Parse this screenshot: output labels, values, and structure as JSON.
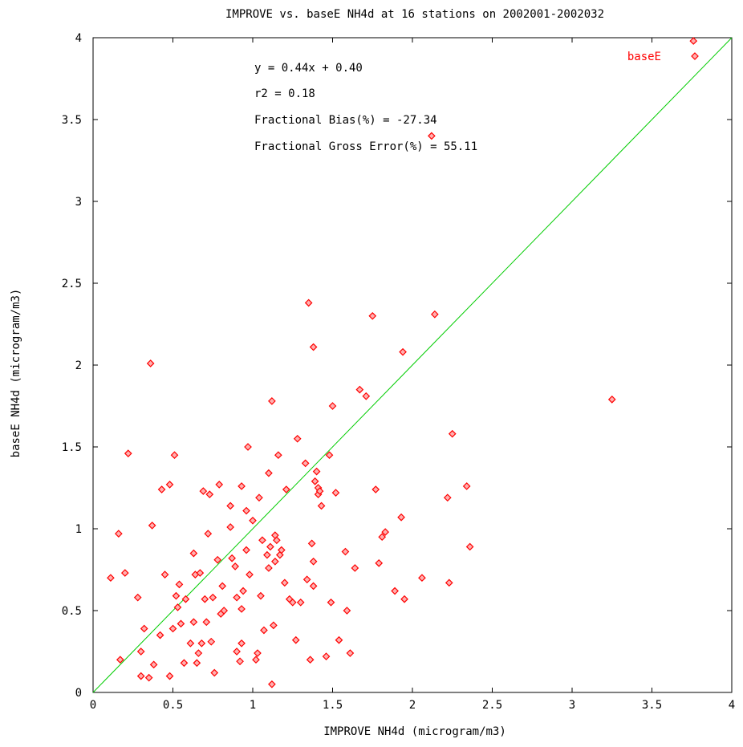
{
  "chart_data": {
    "type": "scatter",
    "title": "IMPROVE vs. baseE NH4d at 16 stations on 2002001-2002032",
    "xlabel": "IMPROVE NH4d  (microgram/m3)",
    "ylabel": "baseE NH4d  (microgram/m3)",
    "xlim": [
      0,
      4
    ],
    "ylim": [
      0,
      4
    ],
    "xticks": [
      "0",
      "0.5",
      "1",
      "1.5",
      "2",
      "2.5",
      "3",
      "3.5",
      "4"
    ],
    "yticks": [
      "0",
      "0.5",
      "1",
      "1.5",
      "2",
      "2.5",
      "3",
      "3.5",
      "4"
    ],
    "grid": false,
    "legend": {
      "label": "baseE",
      "placement": "top-right"
    },
    "stats": [
      "y = 0.44x + 0.40",
      "r2 = 0.18",
      "Fractional Bias(%) = -27.34",
      "Fractional Gross Error(%) = 55.11"
    ],
    "reference_line": {
      "type": "1:1",
      "color": "#00cc00"
    },
    "series": [
      {
        "name": "baseE",
        "color": "#ff0000",
        "points": [
          [
            0.11,
            0.7
          ],
          [
            0.16,
            0.97
          ],
          [
            0.17,
            0.2
          ],
          [
            0.2,
            0.73
          ],
          [
            0.22,
            1.46
          ],
          [
            0.28,
            0.58
          ],
          [
            0.3,
            0.25
          ],
          [
            0.3,
            0.1
          ],
          [
            0.32,
            0.39
          ],
          [
            0.35,
            0.09
          ],
          [
            0.36,
            2.01
          ],
          [
            0.37,
            1.02
          ],
          [
            0.38,
            0.17
          ],
          [
            0.42,
            0.35
          ],
          [
            0.43,
            1.24
          ],
          [
            0.45,
            0.72
          ],
          [
            0.48,
            1.27
          ],
          [
            0.48,
            0.1
          ],
          [
            0.5,
            0.39
          ],
          [
            0.51,
            1.45
          ],
          [
            0.52,
            0.59
          ],
          [
            0.53,
            0.52
          ],
          [
            0.54,
            0.66
          ],
          [
            0.55,
            0.42
          ],
          [
            0.57,
            0.18
          ],
          [
            0.58,
            0.57
          ],
          [
            0.61,
            0.3
          ],
          [
            0.63,
            0.85
          ],
          [
            0.63,
            0.43
          ],
          [
            0.64,
            0.72
          ],
          [
            0.65,
            0.18
          ],
          [
            0.66,
            0.24
          ],
          [
            0.67,
            0.73
          ],
          [
            0.68,
            0.3
          ],
          [
            0.69,
            1.23
          ],
          [
            0.7,
            0.57
          ],
          [
            0.71,
            0.43
          ],
          [
            0.72,
            0.97
          ],
          [
            0.73,
            1.21
          ],
          [
            0.74,
            0.31
          ],
          [
            0.75,
            0.58
          ],
          [
            0.76,
            0.12
          ],
          [
            0.78,
            0.81
          ],
          [
            0.79,
            1.27
          ],
          [
            0.8,
            0.48
          ],
          [
            0.81,
            0.65
          ],
          [
            0.82,
            0.5
          ],
          [
            0.86,
            1.14
          ],
          [
            0.86,
            1.01
          ],
          [
            0.87,
            0.82
          ],
          [
            0.89,
            0.77
          ],
          [
            0.9,
            0.58
          ],
          [
            0.9,
            0.25
          ],
          [
            0.92,
            0.19
          ],
          [
            0.93,
            1.26
          ],
          [
            0.93,
            0.3
          ],
          [
            0.93,
            0.51
          ],
          [
            0.94,
            0.62
          ],
          [
            0.96,
            1.11
          ],
          [
            0.96,
            0.87
          ],
          [
            0.97,
            1.5
          ],
          [
            0.98,
            0.72
          ],
          [
            1.0,
            1.05
          ],
          [
            1.02,
            0.2
          ],
          [
            1.03,
            0.24
          ],
          [
            1.04,
            1.19
          ],
          [
            1.05,
            0.59
          ],
          [
            1.06,
            0.93
          ],
          [
            1.07,
            0.38
          ],
          [
            1.09,
            0.84
          ],
          [
            1.1,
            0.76
          ],
          [
            1.1,
            1.34
          ],
          [
            1.11,
            0.89
          ],
          [
            1.12,
            1.78
          ],
          [
            1.12,
            0.05
          ],
          [
            1.13,
            0.41
          ],
          [
            1.14,
            0.96
          ],
          [
            1.14,
            0.8
          ],
          [
            1.15,
            0.93
          ],
          [
            1.16,
            1.45
          ],
          [
            1.17,
            0.84
          ],
          [
            1.18,
            0.87
          ],
          [
            1.2,
            0.67
          ],
          [
            1.21,
            1.24
          ],
          [
            1.23,
            0.57
          ],
          [
            1.25,
            0.55
          ],
          [
            1.27,
            0.32
          ],
          [
            1.28,
            1.55
          ],
          [
            1.3,
            0.55
          ],
          [
            1.33,
            1.4
          ],
          [
            1.34,
            0.69
          ],
          [
            1.35,
            2.38
          ],
          [
            1.36,
            0.2
          ],
          [
            1.37,
            0.91
          ],
          [
            1.38,
            2.11
          ],
          [
            1.38,
            0.8
          ],
          [
            1.38,
            0.65
          ],
          [
            1.39,
            1.29
          ],
          [
            1.4,
            1.35
          ],
          [
            1.41,
            1.25
          ],
          [
            1.41,
            1.21
          ],
          [
            1.42,
            1.23
          ],
          [
            1.43,
            1.14
          ],
          [
            1.46,
            0.22
          ],
          [
            1.48,
            1.45
          ],
          [
            1.49,
            0.55
          ],
          [
            1.5,
            1.75
          ],
          [
            1.52,
            1.22
          ],
          [
            1.54,
            0.32
          ],
          [
            1.58,
            0.86
          ],
          [
            1.59,
            0.5
          ],
          [
            1.61,
            0.24
          ],
          [
            1.64,
            0.76
          ],
          [
            1.67,
            1.85
          ],
          [
            1.71,
            1.81
          ],
          [
            1.75,
            2.3
          ],
          [
            1.77,
            1.24
          ],
          [
            1.79,
            0.79
          ],
          [
            1.81,
            0.95
          ],
          [
            1.83,
            0.98
          ],
          [
            1.89,
            0.62
          ],
          [
            1.93,
            1.07
          ],
          [
            1.94,
            2.08
          ],
          [
            1.95,
            0.57
          ],
          [
            2.06,
            0.7
          ],
          [
            2.12,
            3.4
          ],
          [
            2.14,
            2.31
          ],
          [
            2.22,
            1.19
          ],
          [
            2.23,
            0.67
          ],
          [
            2.25,
            1.58
          ],
          [
            2.34,
            1.26
          ],
          [
            2.36,
            0.89
          ],
          [
            3.25,
            1.79
          ],
          [
            3.76,
            3.98
          ]
        ]
      }
    ]
  }
}
